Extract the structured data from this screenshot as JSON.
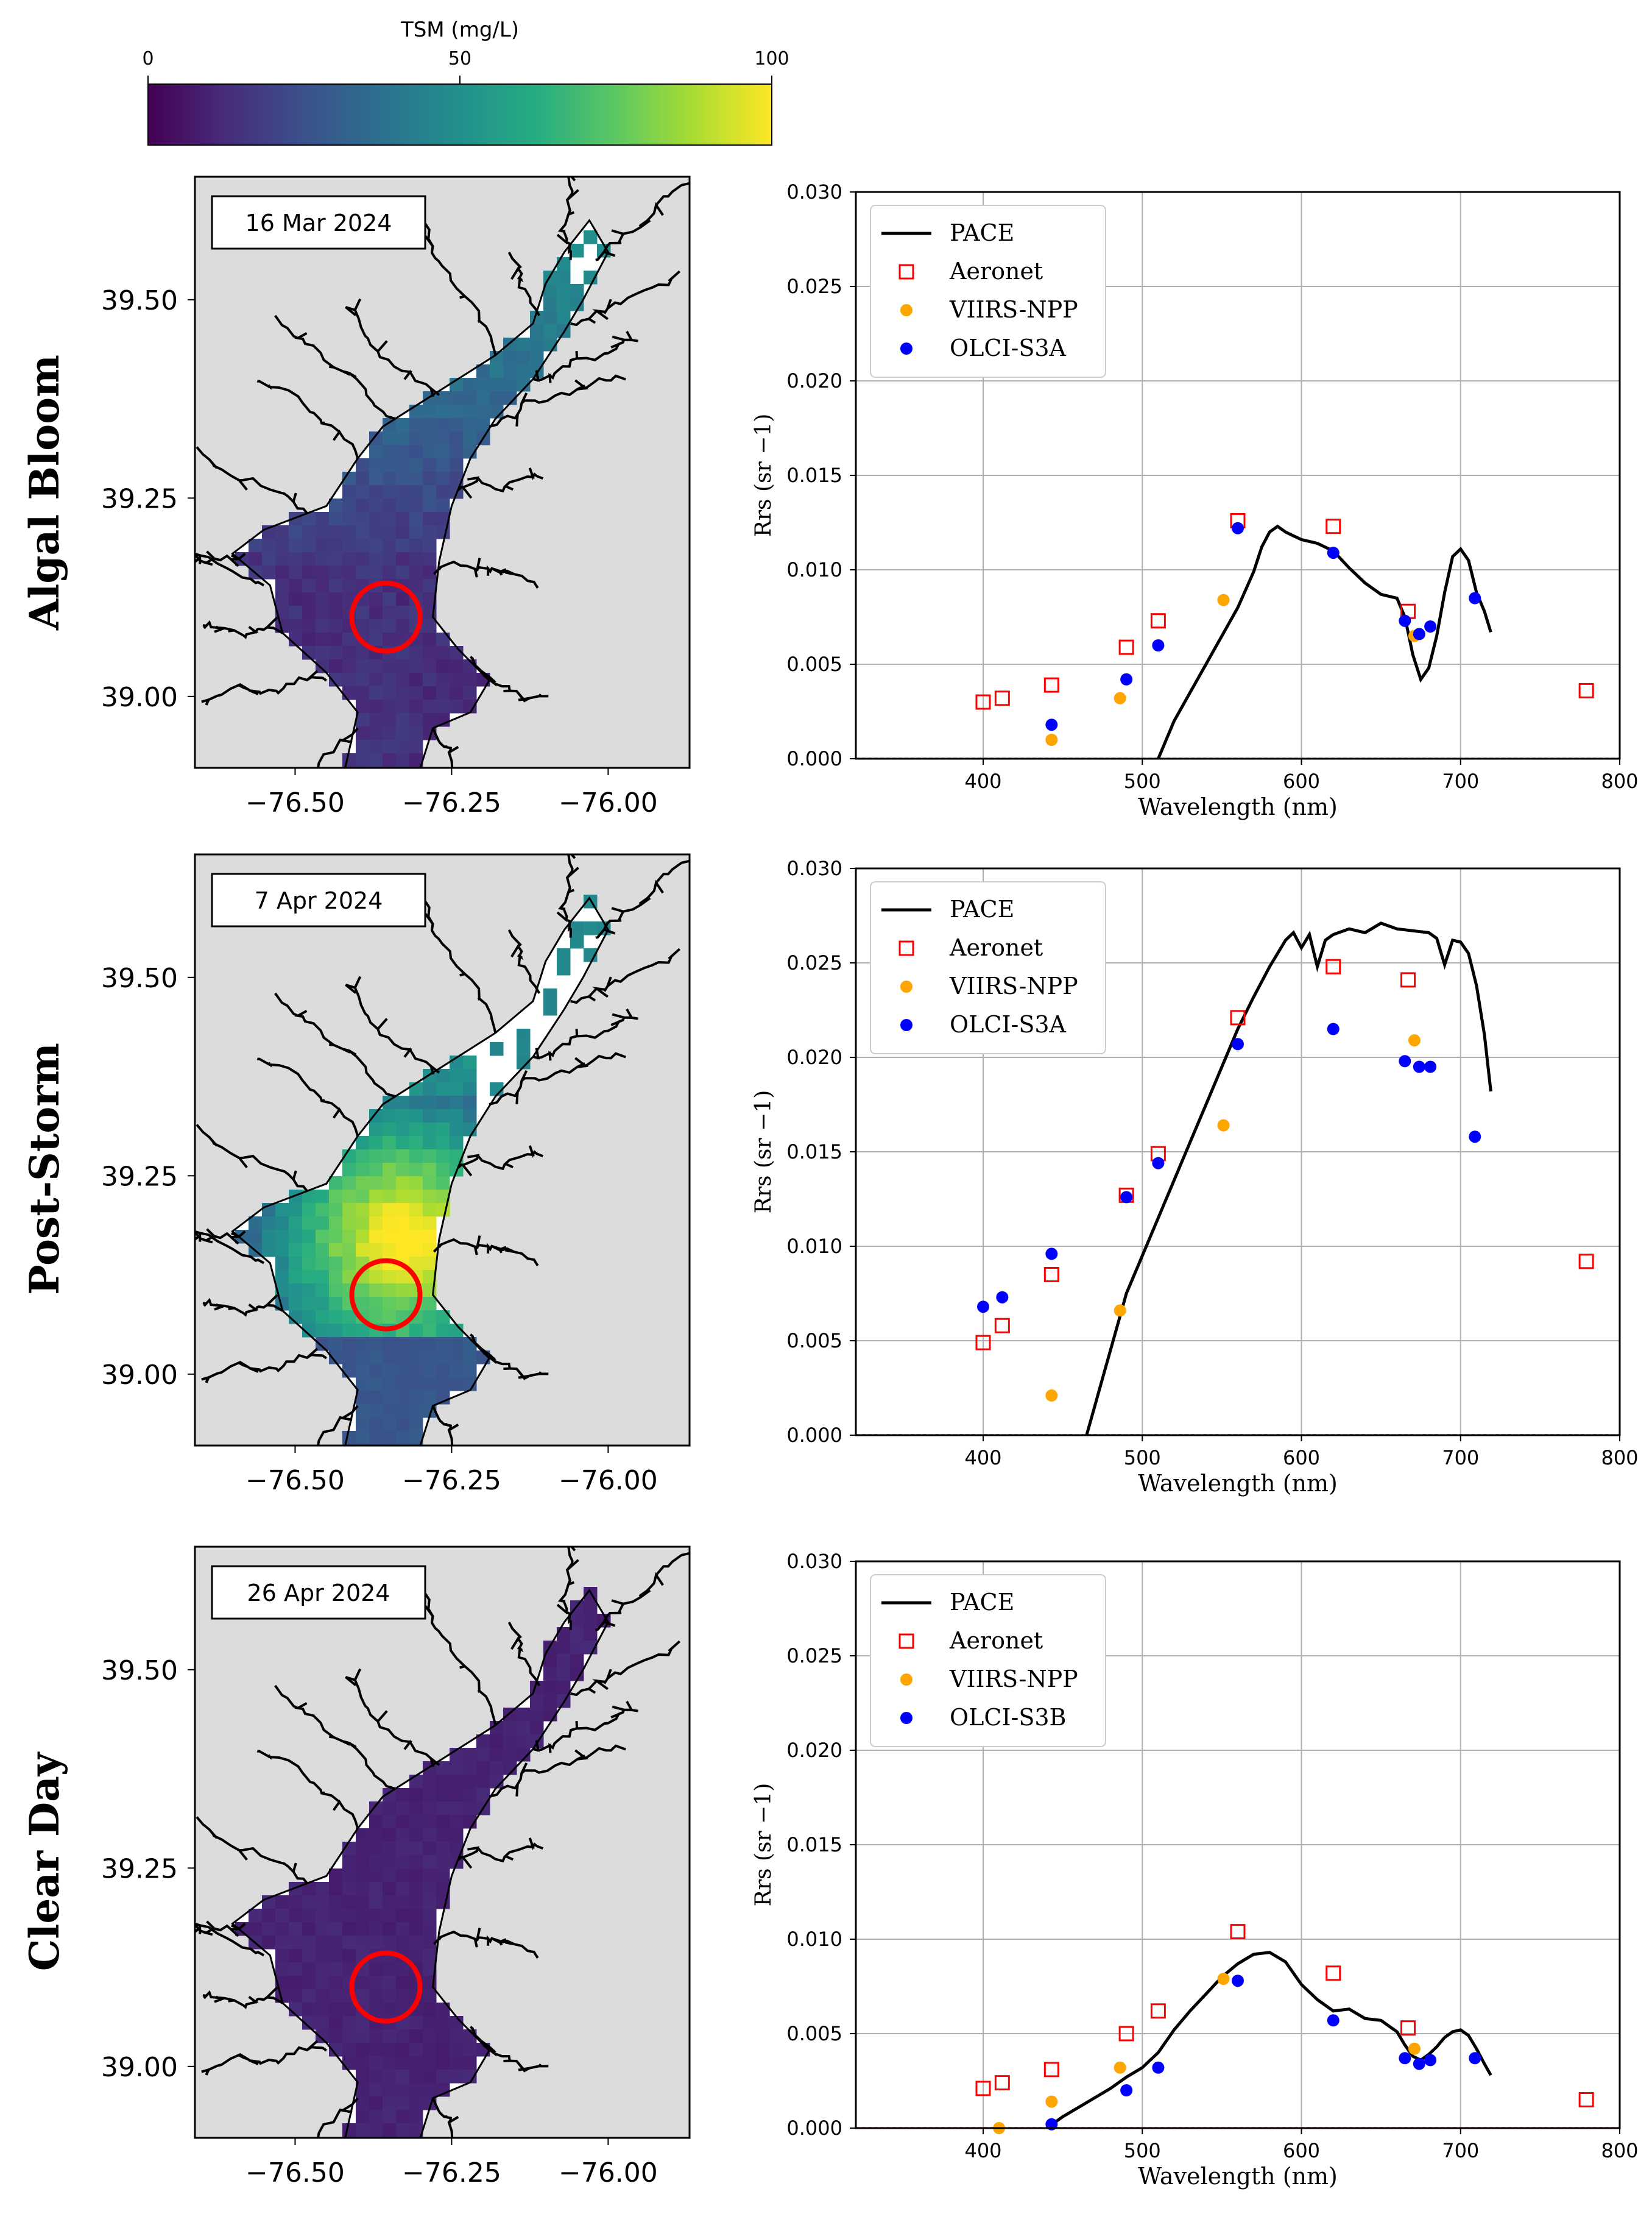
{
  "colorbar": {
    "title": "TSM (mg/L)",
    "ticks": [
      "0",
      "50",
      "100"
    ],
    "tick_values": [
      0,
      50,
      100
    ],
    "range": [
      0,
      100
    ],
    "colors": [
      "#440154",
      "#472c7a",
      "#3b518b",
      "#2c718e",
      "#21908d",
      "#27ad81",
      "#5cc863",
      "#aadc32",
      "#fde725"
    ]
  },
  "map_axes": {
    "x_ticks": [
      "−76.50",
      "−76.25",
      "−76.00"
    ],
    "x_tick_values": [
      -76.5,
      -76.25,
      -76.0
    ],
    "y_ticks": [
      "39.50",
      "39.25",
      "39.00"
    ],
    "y_tick_values": [
      39.5,
      39.25,
      39.0
    ]
  },
  "panels": [
    {
      "row_label": "Algal Bloom",
      "date": "16 Mar 2024",
      "tsm_level": "moderate",
      "chart_data": {
        "type": "scatter",
        "xlabel": "Wavelength (nm)",
        "ylabel": "Rrs (sr −1)",
        "xlim": [
          320,
          800
        ],
        "ylim": [
          0,
          0.03
        ],
        "x_ticks": [
          "400",
          "500",
          "600",
          "700",
          "800"
        ],
        "y_ticks": [
          "0.000",
          "0.005",
          "0.010",
          "0.015",
          "0.020",
          "0.025",
          "0.030"
        ],
        "legend": [
          "PACE",
          "Aeronet",
          "VIIRS-NPP",
          "OLCI-S3A"
        ],
        "legend_position": "top-left",
        "series": [
          {
            "name": "PACE",
            "type": "line",
            "color": "#000000",
            "x": [
              510,
              520,
              530,
              540,
              550,
              560,
              570,
              575,
              580,
              585,
              590,
              595,
              600,
              610,
              620,
              630,
              640,
              650,
              655,
              660,
              665,
              670,
              675,
              680,
              685,
              690,
              695,
              700,
              705,
              710,
              715,
              719
            ],
            "y": [
              0.0,
              0.002,
              0.0035,
              0.005,
              0.0065,
              0.008,
              0.0099,
              0.0112,
              0.012,
              0.0123,
              0.012,
              0.0118,
              0.0116,
              0.0114,
              0.011,
              0.0101,
              0.0093,
              0.0087,
              0.0086,
              0.0085,
              0.0075,
              0.0055,
              0.0042,
              0.0048,
              0.0065,
              0.0088,
              0.0107,
              0.0111,
              0.0105,
              0.0088,
              0.0078,
              0.0067
            ]
          },
          {
            "name": "Aeronet",
            "type": "open-square",
            "color": "#ff0000",
            "x": [
              400,
              412,
              443,
              490,
              510,
              560,
              620,
              667,
              779
            ],
            "y": [
              0.003,
              0.0032,
              0.0039,
              0.0059,
              0.0073,
              0.0126,
              0.0123,
              0.0078,
              0.0036
            ]
          },
          {
            "name": "VIIRS-NPP",
            "type": "dot",
            "color": "#ffa500",
            "x": [
              443,
              486,
              551,
              671
            ],
            "y": [
              0.001,
              0.0032,
              0.0084,
              0.0065
            ]
          },
          {
            "name": "OLCI-S3A",
            "type": "dot",
            "color": "#0000ff",
            "x": [
              443,
              490,
              510,
              560,
              620,
              665,
              674,
              681,
              709
            ],
            "y": [
              0.0018,
              0.0042,
              0.006,
              0.0122,
              0.0109,
              0.0073,
              0.0066,
              0.007,
              0.0085
            ]
          }
        ]
      }
    },
    {
      "row_label": "Post-Storm",
      "date": "7 Apr 2024",
      "tsm_level": "high",
      "chart_data": {
        "type": "scatter",
        "xlabel": "Wavelength (nm)",
        "ylabel": "Rrs (sr −1)",
        "xlim": [
          320,
          800
        ],
        "ylim": [
          0,
          0.03
        ],
        "x_ticks": [
          "400",
          "500",
          "600",
          "700",
          "800"
        ],
        "y_ticks": [
          "0.000",
          "0.005",
          "0.010",
          "0.015",
          "0.020",
          "0.025",
          "0.030"
        ],
        "legend": [
          "PACE",
          "Aeronet",
          "VIIRS-NPP",
          "OLCI-S3A"
        ],
        "legend_position": "top-left",
        "series": [
          {
            "name": "PACE",
            "type": "line",
            "color": "#000000",
            "x": [
              465,
              470,
              475,
              480,
              485,
              490,
              500,
              510,
              520,
              530,
              540,
              550,
              560,
              570,
              580,
              590,
              595,
              600,
              605,
              610,
              615,
              620,
              630,
              640,
              650,
              660,
              670,
              680,
              685,
              690,
              695,
              700,
              705,
              710,
              715,
              719
            ],
            "y": [
              0.0,
              0.0015,
              0.003,
              0.0045,
              0.006,
              0.0075,
              0.0095,
              0.0115,
              0.0135,
              0.0155,
              0.0175,
              0.0195,
              0.0215,
              0.0232,
              0.0248,
              0.0262,
              0.0266,
              0.0258,
              0.0265,
              0.0248,
              0.0262,
              0.0265,
              0.0268,
              0.0266,
              0.0271,
              0.0268,
              0.0267,
              0.0266,
              0.0263,
              0.0249,
              0.0262,
              0.0261,
              0.0255,
              0.0238,
              0.0212,
              0.0182
            ]
          },
          {
            "name": "Aeronet",
            "type": "open-square",
            "color": "#ff0000",
            "x": [
              400,
              412,
              443,
              490,
              510,
              560,
              620,
              667,
              779
            ],
            "y": [
              0.0049,
              0.0058,
              0.0085,
              0.0127,
              0.0149,
              0.0221,
              0.0248,
              0.0241,
              0.0092
            ]
          },
          {
            "name": "VIIRS-NPP",
            "type": "dot",
            "color": "#ffa500",
            "x": [
              443,
              486,
              551,
              671
            ],
            "y": [
              0.0021,
              0.0066,
              0.0164,
              0.0209
            ]
          },
          {
            "name": "OLCI-S3A",
            "type": "dot",
            "color": "#0000ff",
            "x": [
              400,
              412,
              443,
              490,
              510,
              560,
              620,
              665,
              674,
              681,
              709
            ],
            "y": [
              0.0068,
              0.0073,
              0.0096,
              0.0126,
              0.0144,
              0.0207,
              0.0215,
              0.0198,
              0.0195,
              0.0195,
              0.0158
            ]
          }
        ]
      }
    },
    {
      "row_label": "Clear Day",
      "date": "26 Apr 2024",
      "tsm_level": "low",
      "chart_data": {
        "type": "scatter",
        "xlabel": "Wavelength (nm)",
        "ylabel": "Rrs (sr −1)",
        "xlim": [
          320,
          800
        ],
        "ylim": [
          0,
          0.03
        ],
        "x_ticks": [
          "400",
          "500",
          "600",
          "700",
          "800"
        ],
        "y_ticks": [
          "0.000",
          "0.005",
          "0.010",
          "0.015",
          "0.020",
          "0.025",
          "0.030"
        ],
        "legend": [
          "PACE",
          "Aeronet",
          "VIIRS-NPP",
          "OLCI-S3B"
        ],
        "legend_position": "top-left",
        "series": [
          {
            "name": "PACE",
            "type": "line",
            "color": "#000000",
            "x": [
              440,
              450,
              460,
              470,
              480,
              490,
              500,
              510,
              520,
              530,
              540,
              550,
              560,
              570,
              580,
              590,
              600,
              610,
              620,
              630,
              640,
              650,
              660,
              665,
              670,
              675,
              680,
              685,
              690,
              695,
              700,
              705,
              710,
              715,
              719
            ],
            "y": [
              0.0,
              0.0006,
              0.0011,
              0.0016,
              0.0021,
              0.0027,
              0.0032,
              0.004,
              0.0052,
              0.0062,
              0.0071,
              0.008,
              0.0087,
              0.0092,
              0.0093,
              0.0088,
              0.0076,
              0.0068,
              0.0062,
              0.0063,
              0.0058,
              0.0057,
              0.0051,
              0.0044,
              0.0038,
              0.0036,
              0.0039,
              0.0043,
              0.0048,
              0.0051,
              0.0052,
              0.0049,
              0.0042,
              0.0034,
              0.0028
            ]
          },
          {
            "name": "Aeronet",
            "type": "open-square",
            "color": "#ff0000",
            "x": [
              400,
              412,
              443,
              490,
              510,
              560,
              620,
              667,
              779
            ],
            "y": [
              0.0021,
              0.0024,
              0.0031,
              0.005,
              0.0062,
              0.0104,
              0.0082,
              0.0053,
              0.0015
            ]
          },
          {
            "name": "VIIRS-NPP",
            "type": "dot",
            "color": "#ffa500",
            "x": [
              410,
              443,
              486,
              551,
              671
            ],
            "y": [
              0.0,
              0.0014,
              0.0032,
              0.0079,
              0.0042
            ]
          },
          {
            "name": "OLCI-S3B",
            "type": "dot",
            "color": "#0000ff",
            "x": [
              443,
              490,
              510,
              560,
              620,
              665,
              674,
              681,
              709
            ],
            "y": [
              0.0002,
              0.002,
              0.0032,
              0.0078,
              0.0057,
              0.0037,
              0.0034,
              0.0036,
              0.0037
            ]
          }
        ]
      }
    }
  ]
}
